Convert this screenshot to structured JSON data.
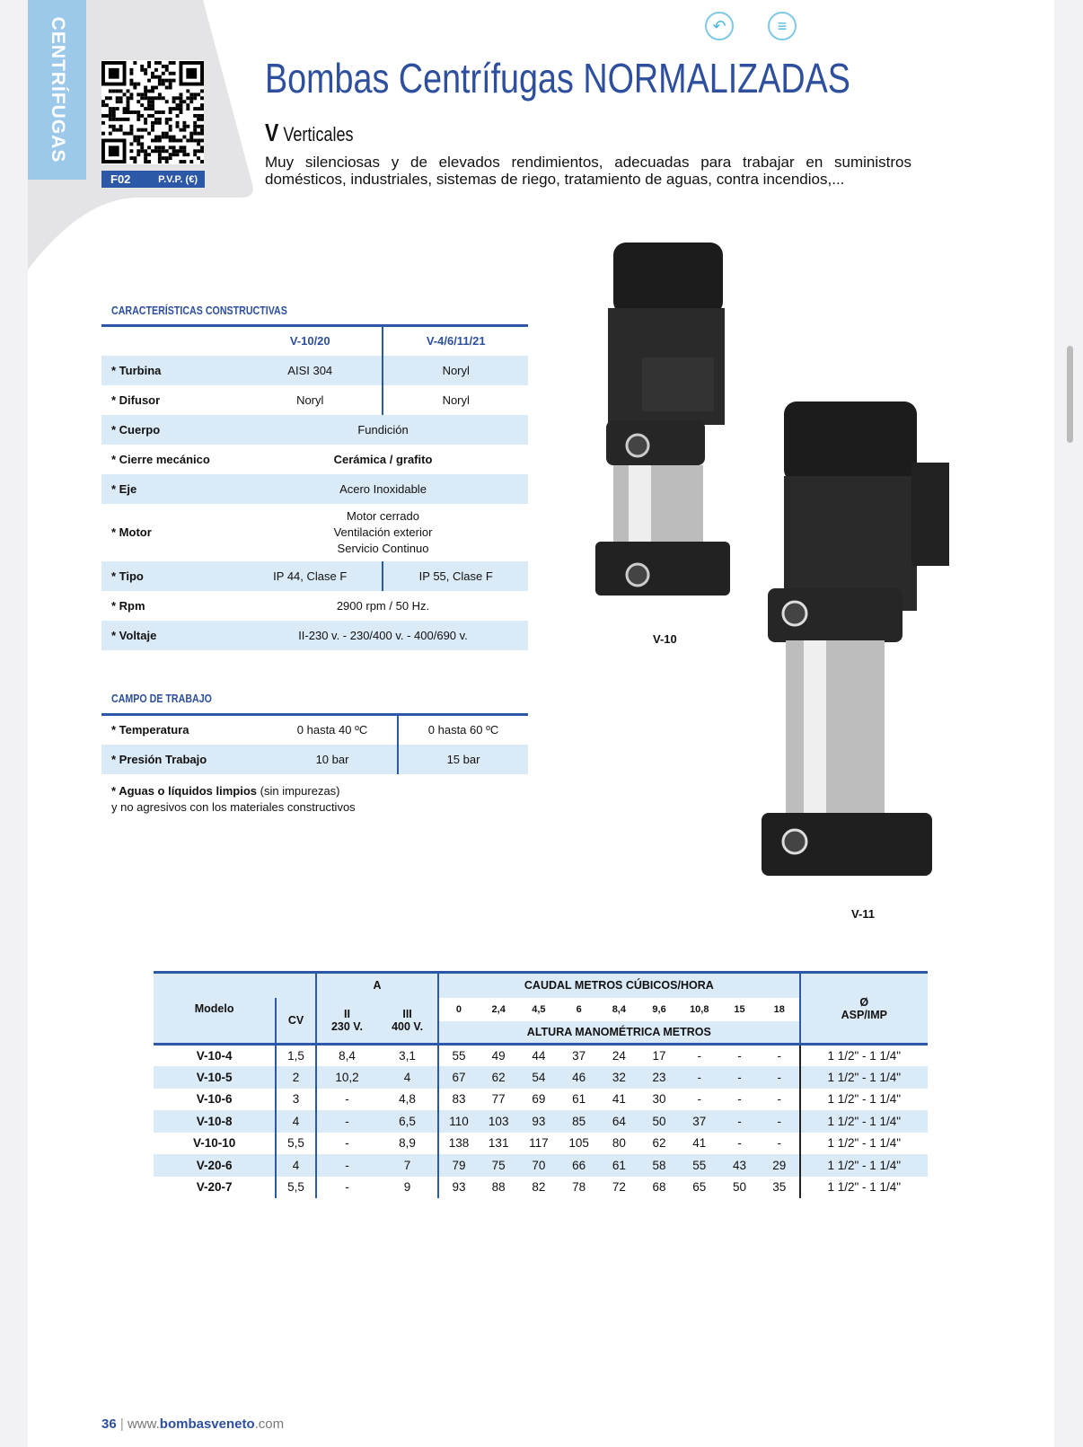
{
  "sidebar_tab": "CENTRÍFUGAS",
  "qr": {
    "code": "F02",
    "price_label": "P.V.P. (€)"
  },
  "nav_icons": [
    "back-icon",
    "menu-icon"
  ],
  "header": {
    "title": "Bombas Centrífugas NORMALIZADAS",
    "series_letter": "V",
    "series_name": "Verticales",
    "description": "Muy silenciosas y de elevados rendimientos, adecuadas para trabajar en suministros domésticos, industriales, sistemas de riego, tratamiento de aguas, contra incendios,..."
  },
  "construction": {
    "title": "CARACTERÍSTICAS CONSTRUCTIVAS",
    "col1": "V-10/20",
    "col2": "V-4/6/11/21",
    "rows": [
      {
        "label": "* Turbina",
        "v1": "AISI 304",
        "v2": "Noryl"
      },
      {
        "label": "* Difusor",
        "v1": "Noryl",
        "v2": "Noryl"
      },
      {
        "label": "* Cuerpo",
        "v": "Fundición"
      },
      {
        "label": "* Cierre mecánico",
        "v": "Cerámica / grafito"
      },
      {
        "label": "* Eje",
        "v": "Acero Inoxidable"
      },
      {
        "label": "* Motor",
        "lines": [
          "Motor cerrado",
          "Ventilación exterior",
          "Servicio Continuo"
        ]
      },
      {
        "label": "* Tipo",
        "v1": "IP 44, Clase F",
        "v2": "IP 55, Clase F"
      },
      {
        "label": "* Rpm",
        "v": "2900 rpm / 50 Hz."
      },
      {
        "label": "* Voltaje",
        "v": "II-230 v. - 230/400 v. - 400/690 v."
      }
    ]
  },
  "work": {
    "title": "CAMPO DE TRABAJO",
    "rows": [
      {
        "label": "* Temperatura",
        "v1": "0 hasta 40 ºC",
        "v2": "0 hasta 60 ºC"
      },
      {
        "label": "* Presión Trabajo",
        "v1": "10 bar",
        "v2": "15 bar"
      }
    ],
    "note_bold": "* Aguas o líquidos limpios",
    "note_rest": " (sin impurezas)",
    "note_line2": "y no agresivos con los materiales constructivos"
  },
  "products": [
    {
      "label": "V-10"
    },
    {
      "label": "V-11"
    }
  ],
  "models": {
    "h_model": "Modelo",
    "h_cv": "CV",
    "h_a": "A",
    "h_a2": "II",
    "h_a2v": "230 V.",
    "h_a3": "III",
    "h_a3v": "400 V.",
    "h_flow": "CAUDAL METROS CÚBICOS/HORA",
    "flows": [
      "0",
      "2,4",
      "4,5",
      "6",
      "8,4",
      "9,6",
      "10,8",
      "15",
      "18"
    ],
    "h_head": "ALTURA MANOMÉTRICA METROS",
    "h_dia": "Ø",
    "h_dia2": "ASP/IMP",
    "rows": [
      [
        "V-10-4",
        "1,5",
        "8,4",
        "3,1",
        "55",
        "49",
        "44",
        "37",
        "24",
        "17",
        "-",
        "-",
        "-",
        "1 1/2\" - 1 1/4\""
      ],
      [
        "V-10-5",
        "2",
        "10,2",
        "4",
        "67",
        "62",
        "54",
        "46",
        "32",
        "23",
        "-",
        "-",
        "-",
        "1 1/2\" - 1 1/4\""
      ],
      [
        "V-10-6",
        "3",
        "-",
        "4,8",
        "83",
        "77",
        "69",
        "61",
        "41",
        "30",
        "-",
        "-",
        "-",
        "1 1/2\" - 1 1/4\""
      ],
      [
        "V-10-8",
        "4",
        "-",
        "6,5",
        "110",
        "103",
        "93",
        "85",
        "64",
        "50",
        "37",
        "-",
        "-",
        "1 1/2\" - 1 1/4\""
      ],
      [
        "V-10-10",
        "5,5",
        "-",
        "8,9",
        "138",
        "131",
        "117",
        "105",
        "80",
        "62",
        "41",
        "-",
        "-",
        "1 1/2\" - 1 1/4\""
      ],
      [
        "V-20-6",
        "4",
        "-",
        "7",
        "79",
        "75",
        "70",
        "66",
        "61",
        "58",
        "55",
        "43",
        "29",
        "1 1/2\" - 1 1/4\""
      ],
      [
        "V-20-7",
        "5,5",
        "-",
        "9",
        "93",
        "88",
        "82",
        "78",
        "72",
        "68",
        "65",
        "50",
        "35",
        "1 1/2\" - 1 1/4\""
      ]
    ]
  },
  "footer": {
    "page": "36",
    "sep": "|",
    "www": "www.",
    "brand": "bombasveneto",
    ".com": ".com",
    "tld": ".com"
  },
  "colors": {
    "brand_blue": "#2d4f9e",
    "tab_blue": "#9cc8ea",
    "row_shade": "#dbeaf7"
  }
}
